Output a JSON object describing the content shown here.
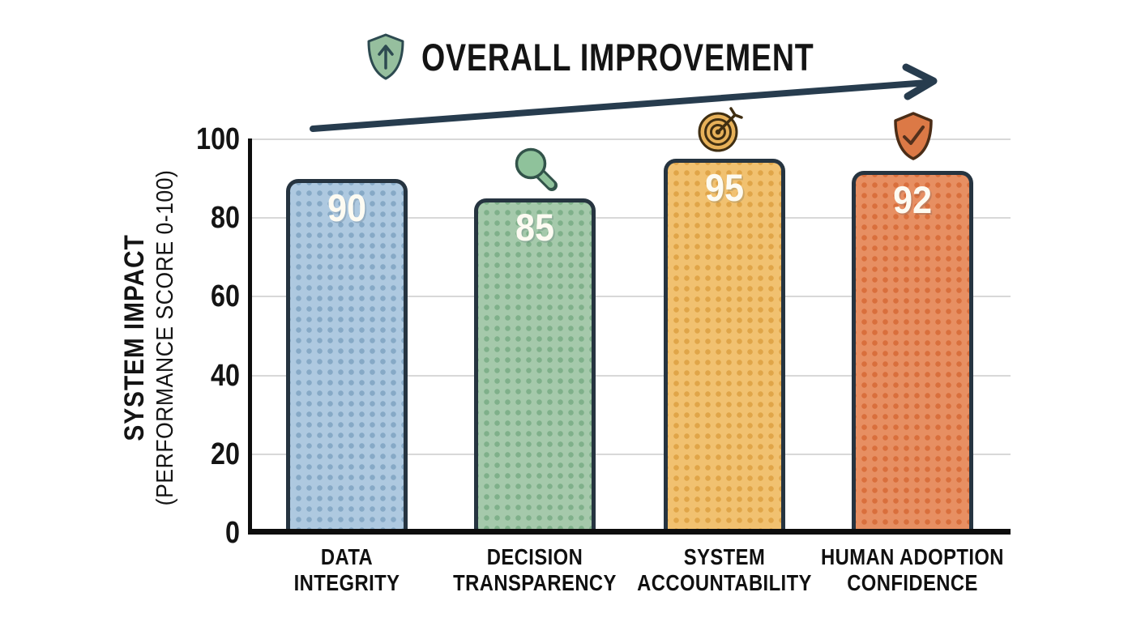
{
  "header": {
    "title": "OVERALL IMPROVEMENT",
    "icon": "shield-up-arrow-icon"
  },
  "y_axis": {
    "title": "SYSTEM IMPACT",
    "subtitle": "(PERFORMANCE SCORE 0-100)",
    "ticks": [
      0,
      20,
      40,
      60,
      80,
      100
    ]
  },
  "chart_data": {
    "type": "bar",
    "title": "OVERALL IMPROVEMENT",
    "ylabel": "SYSTEM IMPACT (PERFORMANCE SCORE 0-100)",
    "ylim": [
      0,
      100
    ],
    "grid": true,
    "legend": "none",
    "categories": [
      "DATA INTEGRITY",
      "DECISION TRANSPARENCY",
      "SYSTEM ACCOUNTABILITY",
      "HUMAN ADOPTION CONFIDENCE"
    ],
    "values": [
      90,
      85,
      95,
      92
    ],
    "bars": [
      {
        "label_lines": [
          "DATA",
          "INTEGRITY"
        ],
        "value": 90,
        "fill": "#aec9e0",
        "dot": "#86a9c6",
        "icon": null
      },
      {
        "label_lines": [
          "DECISION",
          "TRANSPARENCY"
        ],
        "value": 85,
        "fill": "#a5c9ab",
        "dot": "#7fb08a",
        "icon": "magnifier-icon"
      },
      {
        "label_lines": [
          "SYSTEM",
          "ACCOUNTABILITY"
        ],
        "value": 95,
        "fill": "#f1c170",
        "dot": "#e0a548",
        "icon": "target-icon"
      },
      {
        "label_lines": [
          "HUMAN ADOPTION",
          "CONFIDENCE"
        ],
        "value": 92,
        "fill": "#e78f62",
        "dot": "#d96f3c",
        "icon": "shield-check-icon"
      }
    ],
    "annotations": {
      "trend_arrow": "upward arrow left to right above bars"
    }
  },
  "colors": {
    "background": "#ffffff",
    "gridline": "#d8d8d8",
    "axis": "#0d0d0d",
    "arrow": "#273c4e",
    "bar_border": "#263440",
    "value_text": "#fdfbf2",
    "title_shield_fill": "#96bf9e",
    "magnifier_fill": "#8fc29b",
    "target_fill": "#e7b159",
    "check_shield_fill": "#dc7946"
  }
}
